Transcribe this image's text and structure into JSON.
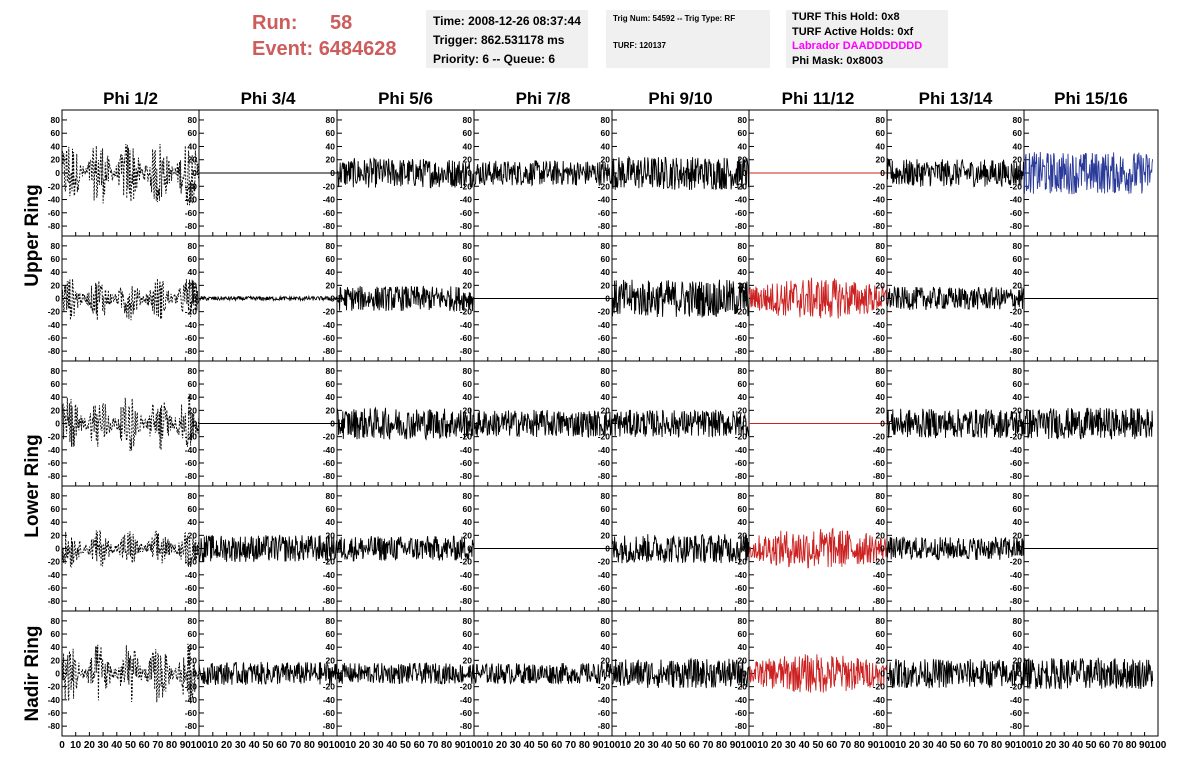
{
  "run": {
    "run_label": "Run:",
    "run_value": "58",
    "event_label": "Event:",
    "event_value": "6484628"
  },
  "info_time": {
    "time": "Time: 2008-12-26 08:37:44",
    "trigger": "Trigger: 862.531178 ms",
    "priority": "Priority: 6 -- Queue: 6"
  },
  "info_trig": {
    "trig": "Trig Num: 54592 -- Trig Type: RF",
    "turf": "TURF: 120137"
  },
  "info_turf": {
    "hold": "TURF This Hold: 0x8",
    "active": "TURF Active Holds: 0xf",
    "labrador": "Labrador DAADDDDDDD",
    "phimask": "Phi Mask: 0x8003"
  },
  "colors": {
    "normal": "#000000",
    "masked": "#cc2222",
    "triggered": "#2a3a9a",
    "labrador": "#ff00ff",
    "header_bg": "#f0f0f0",
    "run_text": "#cd5c5c"
  },
  "chart_data": {
    "type": "line",
    "columns": [
      "Phi 1/2",
      "Phi 3/4",
      "Phi 5/6",
      "Phi 7/8",
      "Phi 9/10",
      "Phi 11/12",
      "Phi 13/14",
      "Phi 15/16"
    ],
    "rows": [
      "Upper Ring",
      "Lower Ring",
      "Nadir Ring"
    ],
    "xlim": [
      0,
      100
    ],
    "ylim": [
      -95,
      95
    ],
    "yticks": [
      -80,
      -60,
      -40,
      -20,
      0,
      20,
      40,
      60,
      80
    ],
    "xticks": [
      0,
      10,
      20,
      30,
      40,
      50,
      60,
      70,
      80,
      90,
      100
    ],
    "xtick_labels": [
      "0",
      "10",
      "20",
      "30",
      "40",
      "50",
      "60",
      "70",
      "80",
      "90",
      "100"
    ],
    "grid": false,
    "panels": [
      [
        {
          "amp": 28,
          "c": "normal",
          "d": 1
        },
        {
          "amp": 0,
          "c": "normal"
        },
        {
          "amp": 14,
          "c": "normal"
        },
        {
          "amp": 12,
          "c": "normal"
        },
        {
          "amp": 16,
          "c": "normal"
        },
        {
          "amp": 0,
          "c": "masked"
        },
        {
          "amp": 13,
          "c": "normal"
        },
        {
          "amp": 20,
          "c": "triggered",
          "xmax": 96
        }
      ],
      [
        {
          "amp": 18,
          "c": "normal",
          "d": 1
        },
        {
          "amp": 2,
          "c": "normal"
        },
        {
          "amp": 12,
          "c": "normal"
        },
        {
          "amp": 0,
          "c": "normal"
        },
        {
          "amp": 18,
          "c": "normal"
        },
        {
          "amp": 20,
          "c": "masked"
        },
        {
          "amp": 11,
          "c": "normal"
        },
        {
          "amp": 0,
          "c": "normal"
        }
      ],
      [
        {
          "amp": 24,
          "c": "normal",
          "d": 1
        },
        {
          "amp": 0,
          "c": "normal"
        },
        {
          "amp": 15,
          "c": "normal"
        },
        {
          "amp": 13,
          "c": "normal"
        },
        {
          "amp": 13,
          "c": "normal"
        },
        {
          "amp": 0,
          "c": "masked"
        },
        {
          "amp": 14,
          "c": "normal"
        },
        {
          "amp": 15,
          "c": "normal",
          "xmax": 96
        }
      ],
      [
        {
          "amp": 16,
          "c": "normal",
          "d": 1
        },
        {
          "amp": 13,
          "c": "normal"
        },
        {
          "amp": 12,
          "c": "normal"
        },
        {
          "amp": 0,
          "c": "normal"
        },
        {
          "amp": 14,
          "c": "normal"
        },
        {
          "amp": 20,
          "c": "masked"
        },
        {
          "amp": 11,
          "c": "normal"
        },
        {
          "amp": 0,
          "c": "normal"
        }
      ],
      [
        {
          "amp": 25,
          "c": "normal",
          "d": 1
        },
        {
          "amp": 11,
          "c": "normal"
        },
        {
          "amp": 10,
          "c": "normal"
        },
        {
          "amp": 10,
          "c": "normal"
        },
        {
          "amp": 14,
          "c": "normal"
        },
        {
          "amp": 19,
          "c": "masked"
        },
        {
          "amp": 14,
          "c": "normal"
        },
        {
          "amp": 15,
          "c": "normal",
          "xmax": 96
        }
      ]
    ]
  }
}
